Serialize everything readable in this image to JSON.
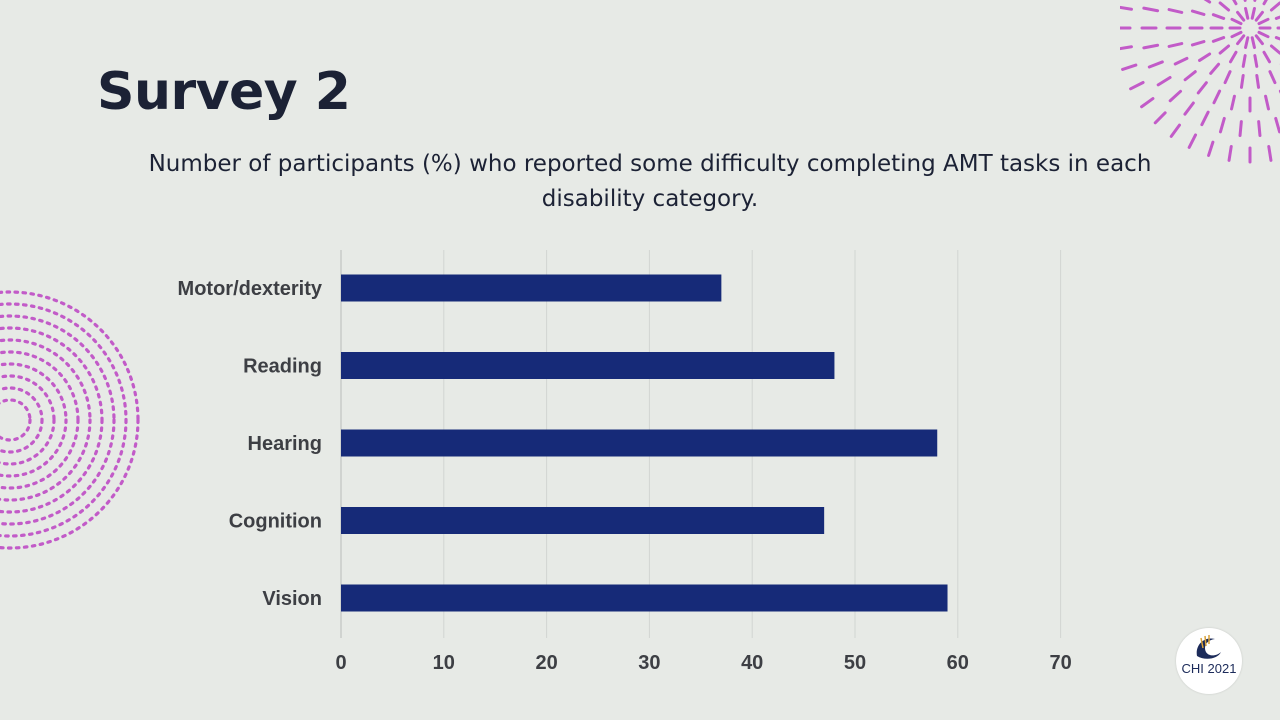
{
  "slide": {
    "title": "Survey 2",
    "subtitle": "Number of participants (%) who reported some difficulty completing AMT tasks in each disability category."
  },
  "logo": {
    "text": "CHI 2021",
    "icon": "chi-wave-icon"
  },
  "colors": {
    "bar": "#162a78",
    "background": "#e7eae6",
    "decoration": "#c25bc8",
    "grid": "#d2d5d2"
  },
  "chart_data": {
    "type": "bar",
    "orientation": "horizontal",
    "categories": [
      "Motor/dexterity",
      "Reading",
      "Hearing",
      "Cognition",
      "Vision"
    ],
    "values": [
      37,
      48,
      58,
      47,
      59
    ],
    "xlim": [
      0,
      70
    ],
    "xticks": [
      "0",
      "10",
      "20",
      "30",
      "40",
      "50",
      "60",
      "70"
    ],
    "grid": true
  }
}
